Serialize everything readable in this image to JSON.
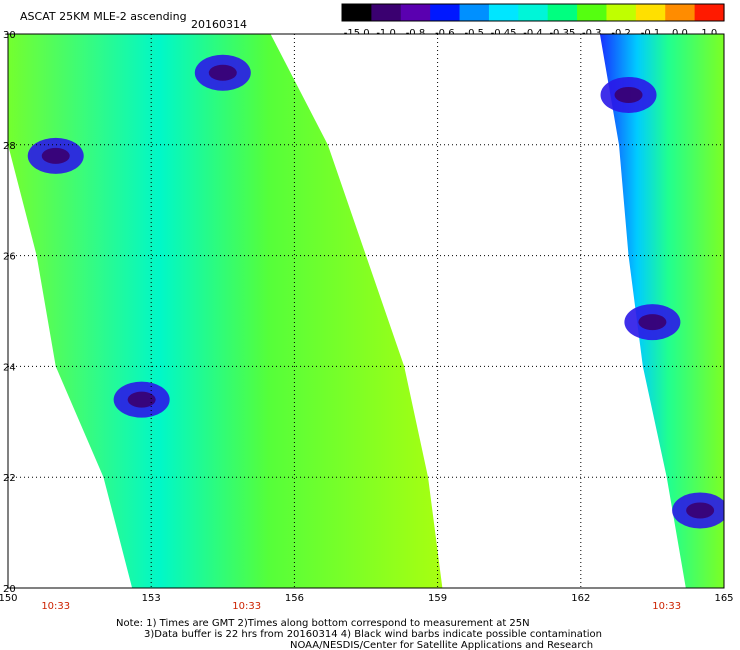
{
  "chart_data": {
    "type": "heatmap",
    "title": "ASCAT 25KM MLE-2 ascending",
    "date": "20160314",
    "x_range": [
      150,
      165
    ],
    "y_range": [
      20,
      30
    ],
    "x_ticks": [
      "150",
      "153",
      "156",
      "159",
      "162",
      "165"
    ],
    "y_ticks": [
      "30",
      "28",
      "26",
      "24",
      "22",
      "20"
    ],
    "grid": "dotted",
    "colorbar": {
      "labels": [
        "-15.0",
        "-1.0",
        "-0.8",
        "-0.6",
        "-0.5",
        "-0.45",
        "-0.4",
        "-0.35",
        "-0.3",
        "-0.2",
        "-0.1",
        "0.0",
        "1.0"
      ],
      "colors": [
        "#000000",
        "#3a0070",
        "#5a00b0",
        "#0018ff",
        "#0090ff",
        "#00e6ff",
        "#00f5d8",
        "#00ff80",
        "#55ff10",
        "#c0ff00",
        "#ffe000",
        "#ff8c00",
        "#ff1a00"
      ]
    },
    "time_labels": [
      {
        "lon": 151,
        "text": "10:33"
      },
      {
        "lon": 155,
        "text": "10:33"
      },
      {
        "lon": 163.8,
        "text": "10:33"
      }
    ],
    "swaths": [
      {
        "name": "west",
        "lat_lon_edges": [
          [
            30,
            150,
            155.5
          ],
          [
            28,
            150,
            156.7
          ],
          [
            26,
            150.6,
            157.5
          ],
          [
            24,
            151.0,
            158.3
          ],
          [
            22,
            152.0,
            158.8
          ],
          [
            20,
            152.6,
            159.1
          ]
        ]
      },
      {
        "name": "east",
        "lat_lon_edges": [
          [
            30,
            162.4,
            165
          ],
          [
            28,
            162.8,
            165
          ],
          [
            26,
            163.0,
            165
          ],
          [
            24,
            163.3,
            165
          ],
          [
            22,
            163.8,
            165
          ],
          [
            20,
            164.2,
            165
          ]
        ]
      }
    ],
    "features": [
      {
        "level": "-0.6",
        "lat": 27.8,
        "lon": 151.0
      },
      {
        "level": "-0.6",
        "lat": 23.4,
        "lon": 152.8
      },
      {
        "level": "-0.6",
        "lat": 29.3,
        "lon": 154.5
      },
      {
        "level": "-0.6",
        "lat": 28.9,
        "lon": 163.0
      },
      {
        "level": "-0.6",
        "lat": 24.8,
        "lon": 163.5
      },
      {
        "level": "-0.6",
        "lat": 21.4,
        "lon": 164.5
      }
    ]
  },
  "notes": [
    "Note: 1) Times are GMT 2)Times along bottom correspond to measurement at 25N",
    "3)Data buffer is 22 hrs from 20160314 4) Black wind barbs indicate possible contamination",
    "NOAA/NESDIS/Center for Satellite Applications and Research"
  ]
}
